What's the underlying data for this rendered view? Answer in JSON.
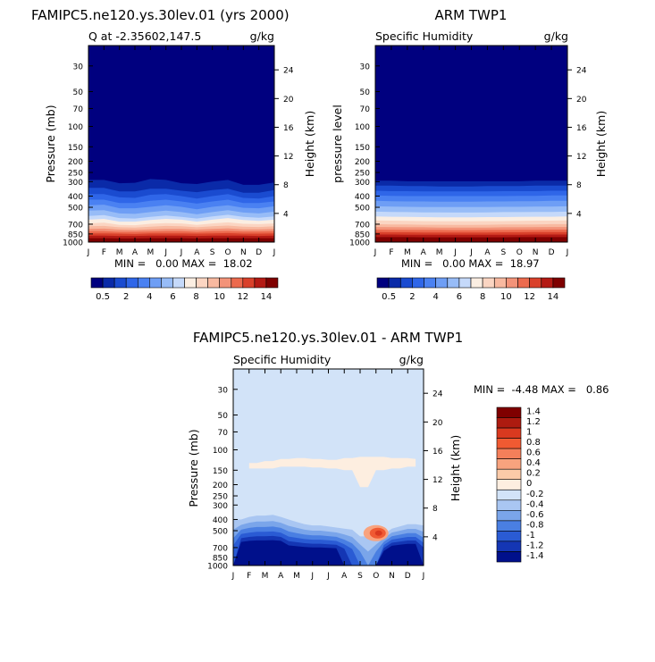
{
  "panels": [
    {
      "title": "FAMIPC5.ne120.ys.30lev.01 (yrs 2000)",
      "subtitle": "Q at -2.35602,147.5",
      "units": "g/kg",
      "ylabel": "Pressure (mb)",
      "ylabel_right": "Height (km)",
      "stats": "MIN =   0.00 MAX =  18.02"
    },
    {
      "title": "ARM TWP1",
      "subtitle": "Specific Humidity",
      "units": "g/kg",
      "ylabel": "pressure level",
      "ylabel_right": "Height (km)",
      "stats": "MIN =   0.00 MAX =  18.97"
    },
    {
      "title": "FAMIPC5.ne120.ys.30lev.01 - ARM TWP1",
      "subtitle": "Specific Humidity",
      "units": "g/kg",
      "ylabel": "Pressure (mb)",
      "ylabel_right": "Height (km)",
      "stats": "MIN =  -4.48 MAX =   0.86"
    }
  ],
  "chart_data": [
    {
      "type": "heatmap",
      "title": "FAMIPC5.ne120.ys.30lev.01 (yrs 2000)",
      "subtitle": "Q at -2.35602,147.5",
      "units": "g/kg",
      "xlabel": "",
      "ylabel": "Pressure (mb)",
      "ylabel_right": "Height (km)",
      "x_ticks": [
        "J",
        "F",
        "M",
        "A",
        "M",
        "J",
        "J",
        "A",
        "S",
        "O",
        "N",
        "D",
        "J"
      ],
      "y_ticks": [
        30,
        50,
        70,
        100,
        150,
        200,
        250,
        300,
        400,
        500,
        700,
        850,
        1000
      ],
      "y_ticks_right": [
        24,
        20,
        16,
        12,
        8,
        4
      ],
      "y_scale": "log",
      "ylim": [
        1000,
        20
      ],
      "x": [
        0,
        1,
        2,
        3,
        4,
        5,
        6,
        7,
        8,
        9,
        10,
        11,
        12
      ],
      "contour_levels": [
        0.5,
        1,
        2,
        3,
        4,
        5,
        6,
        7,
        8,
        9,
        10,
        11,
        12,
        13,
        14
      ],
      "level_pressures": [
        295,
        350,
        395,
        440,
        490,
        545,
        600,
        640,
        690,
        730,
        770,
        805,
        840,
        880,
        925
      ],
      "level_offsets": [
        [
          -5,
          -5,
          15,
          12,
          -10,
          -5,
          15,
          20,
          5,
          -5,
          25,
          25,
          10
        ],
        [
          -10,
          -10,
          15,
          15,
          -5,
          -5,
          10,
          20,
          5,
          -5,
          25,
          25,
          5
        ],
        [
          -10,
          -10,
          15,
          20,
          -5,
          -10,
          5,
          25,
          5,
          -10,
          20,
          25,
          5
        ],
        [
          -10,
          -10,
          20,
          20,
          0,
          -10,
          5,
          25,
          5,
          -10,
          20,
          20,
          5
        ],
        [
          -10,
          -15,
          20,
          20,
          5,
          -10,
          5,
          30,
          5,
          -10,
          15,
          20,
          0
        ],
        [
          -10,
          -15,
          20,
          25,
          5,
          -10,
          5,
          30,
          5,
          -15,
          10,
          20,
          0
        ],
        [
          -5,
          -15,
          20,
          25,
          5,
          -10,
          5,
          25,
          0,
          -20,
          5,
          15,
          0
        ],
        [
          0,
          -10,
          25,
          25,
          5,
          -10,
          0,
          25,
          0,
          -20,
          5,
          15,
          0
        ],
        [
          0,
          -10,
          20,
          25,
          5,
          -5,
          0,
          20,
          0,
          -15,
          5,
          10,
          0
        ],
        [
          0,
          -5,
          15,
          20,
          5,
          -5,
          0,
          15,
          0,
          -10,
          5,
          10,
          0
        ],
        [
          0,
          -5,
          10,
          15,
          5,
          0,
          0,
          10,
          0,
          -10,
          5,
          5,
          0
        ],
        [
          0,
          0,
          10,
          10,
          5,
          0,
          0,
          10,
          0,
          -5,
          5,
          5,
          0
        ],
        [
          0,
          0,
          5,
          10,
          0,
          0,
          0,
          5,
          0,
          -5,
          5,
          5,
          0
        ],
        [
          0,
          0,
          5,
          5,
          0,
          0,
          0,
          5,
          0,
          0,
          0,
          5,
          0
        ],
        [
          0,
          0,
          5,
          5,
          0,
          0,
          0,
          5,
          0,
          0,
          0,
          0,
          0
        ]
      ],
      "stats": {
        "min": 0.0,
        "max": 18.02
      },
      "colorbar_labels": [
        0.5,
        2,
        4,
        6,
        8,
        10,
        12,
        14
      ]
    },
    {
      "type": "heatmap",
      "title": "ARM TWP1",
      "subtitle": "Specific Humidity",
      "units": "g/kg",
      "xlabel": "",
      "ylabel": "pressure level",
      "ylabel_right": "Height (km)",
      "x_ticks": [
        "J",
        "F",
        "M",
        "A",
        "M",
        "J",
        "J",
        "A",
        "S",
        "O",
        "N",
        "D",
        "J"
      ],
      "y_ticks": [
        30,
        50,
        70,
        100,
        150,
        200,
        250,
        300,
        400,
        500,
        700,
        850,
        1000
      ],
      "y_ticks_right": [
        24,
        20,
        16,
        12,
        8,
        4
      ],
      "y_scale": "log",
      "ylim": [
        1000,
        20
      ],
      "x": [
        0,
        1,
        2,
        3,
        4,
        5,
        6,
        7,
        8,
        9,
        10,
        11,
        12
      ],
      "contour_levels": [
        0.5,
        1,
        2,
        3,
        4,
        5,
        6,
        7,
        8,
        9,
        10,
        11,
        12,
        13,
        14
      ],
      "level_pressures": [
        295,
        325,
        360,
        395,
        440,
        490,
        545,
        600,
        650,
        700,
        740,
        780,
        820,
        860,
        905
      ],
      "level_offsets": [
        [
          0,
          0,
          3,
          3,
          3,
          3,
          3,
          3,
          3,
          3,
          0,
          0,
          0
        ],
        [
          0,
          0,
          3,
          3,
          5,
          5,
          5,
          3,
          3,
          3,
          0,
          0,
          0
        ],
        [
          0,
          3,
          3,
          5,
          5,
          5,
          5,
          5,
          3,
          3,
          3,
          0,
          0
        ],
        [
          0,
          3,
          5,
          5,
          5,
          5,
          5,
          5,
          5,
          3,
          3,
          0,
          0
        ],
        [
          0,
          3,
          5,
          5,
          8,
          8,
          8,
          5,
          5,
          3,
          3,
          0,
          0
        ],
        [
          0,
          3,
          5,
          8,
          8,
          8,
          8,
          8,
          5,
          5,
          3,
          3,
          0
        ],
        [
          0,
          3,
          5,
          8,
          8,
          10,
          10,
          8,
          5,
          5,
          3,
          3,
          0
        ],
        [
          0,
          3,
          5,
          8,
          10,
          10,
          10,
          8,
          8,
          5,
          3,
          3,
          0
        ],
        [
          0,
          3,
          5,
          8,
          10,
          10,
          10,
          8,
          8,
          5,
          3,
          3,
          0
        ],
        [
          0,
          3,
          5,
          8,
          8,
          10,
          10,
          8,
          5,
          5,
          3,
          0,
          0
        ],
        [
          0,
          3,
          5,
          5,
          8,
          8,
          8,
          8,
          5,
          5,
          3,
          0,
          0
        ],
        [
          0,
          3,
          5,
          5,
          5,
          8,
          8,
          5,
          5,
          3,
          3,
          0,
          0
        ],
        [
          0,
          3,
          3,
          5,
          5,
          5,
          5,
          5,
          3,
          3,
          0,
          0,
          0
        ],
        [
          0,
          0,
          3,
          3,
          3,
          5,
          5,
          3,
          3,
          3,
          0,
          0,
          0
        ],
        [
          0,
          0,
          0,
          3,
          3,
          3,
          3,
          3,
          3,
          0,
          0,
          0,
          0
        ]
      ],
      "stats": {
        "min": 0.0,
        "max": 18.97
      },
      "colorbar_labels": [
        0.5,
        2,
        4,
        6,
        8,
        10,
        12,
        14
      ]
    },
    {
      "type": "heatmap",
      "title": "FAMIPC5.ne120.ys.30lev.01 - ARM TWP1",
      "subtitle": "Specific Humidity",
      "units": "g/kg",
      "xlabel": "",
      "ylabel": "Pressure (mb)",
      "ylabel_right": "Height (km)",
      "x_ticks": [
        "J",
        "F",
        "M",
        "A",
        "M",
        "J",
        "J",
        "A",
        "S",
        "O",
        "N",
        "D",
        "J"
      ],
      "y_ticks": [
        30,
        50,
        70,
        100,
        150,
        200,
        250,
        300,
        400,
        500,
        700,
        850,
        1000
      ],
      "y_ticks_right": [
        24,
        20,
        16,
        12,
        8,
        4
      ],
      "y_scale": "log",
      "ylim": [
        1000,
        20
      ],
      "x": [
        0,
        0.5,
        1,
        1.5,
        2,
        2.5,
        3,
        3.5,
        4,
        4.5,
        5,
        5.5,
        6,
        6.5,
        7,
        7.5,
        8,
        8.5,
        9,
        9.5,
        10,
        10.5,
        11,
        11.5,
        12
      ],
      "background_value": -0.1,
      "positive_region_top": [
        0,
        0,
        130,
        130,
        125,
        125,
        120,
        120,
        118,
        118,
        120,
        120,
        122,
        122,
        118,
        118,
        115,
        115,
        115,
        115,
        118,
        118,
        118,
        120,
        0
      ],
      "positive_region_bottom": [
        0,
        0,
        145,
        145,
        145,
        145,
        140,
        140,
        140,
        140,
        142,
        142,
        145,
        145,
        150,
        150,
        210,
        210,
        150,
        150,
        145,
        145,
        140,
        140,
        0
      ],
      "negative_region_top": [
        400,
        400,
        380,
        370,
        370,
        365,
        380,
        400,
        420,
        440,
        450,
        450,
        460,
        470,
        480,
        490,
        560,
        560,
        560,
        540,
        480,
        460,
        440,
        440,
        450
      ],
      "negative_region_bottom": [
        1000,
        1000,
        1000,
        1000,
        1000,
        1000,
        1000,
        1000,
        1000,
        1000,
        1000,
        1000,
        1000,
        1000,
        1000,
        1000,
        1000,
        1000,
        1000,
        1000,
        1000,
        1000,
        1000,
        1000,
        1000
      ],
      "negative_region_min": [
        -0.8,
        -1.4,
        -1.4,
        -1.4,
        -1.4,
        -1.4,
        -1.4,
        -1.2,
        -1.2,
        -1.2,
        -1.2,
        -1.2,
        -1.2,
        -1.2,
        -1.0,
        -0.8,
        -0.6,
        -0.4,
        -0.6,
        -1.2,
        -1.4,
        -1.4,
        -1.4,
        -1.4,
        -1.0
      ],
      "feature_positive_oct": {
        "x": 9.0,
        "pressure": 525,
        "max": 0.8
      },
      "stats": {
        "min": -4.48,
        "max": 0.86
      },
      "colorbar_labels": [
        1.4,
        1.2,
        1,
        0.8,
        0.6,
        0.4,
        0.2,
        0,
        -0.2,
        -0.4,
        -0.6,
        -0.8,
        -1,
        -1.2,
        -1.4
      ]
    }
  ],
  "colors": {
    "seq": [
      "#00007f",
      "#0a2aa8",
      "#1a4bd0",
      "#2f66e8",
      "#4a81f2",
      "#6e9ef5",
      "#97bcf7",
      "#c5d9fa",
      "#fbeee2",
      "#fbd5c2",
      "#f8b9a0",
      "#f39379",
      "#ec6a4e",
      "#d9412b",
      "#b41a14",
      "#7f0000"
    ],
    "div": [
      "#7f0000",
      "#ad1b10",
      "#d9391f",
      "#f05a32",
      "#f47f5a",
      "#f8a37e",
      "#fbcaa8",
      "#fdeee0",
      "#d2e3f8",
      "#a9c6f2",
      "#7aa5ea",
      "#4a7fe2",
      "#2a5bd4",
      "#1436b4",
      "#00108b"
    ]
  }
}
